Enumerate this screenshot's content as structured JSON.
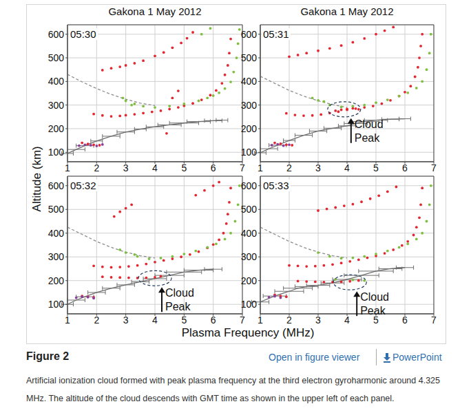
{
  "figure": {
    "x_label": "Plasma Frequency (MHz)",
    "y_label": "Altitude (km)"
  },
  "page": {
    "figure_label": "Figure 2",
    "links": [
      "Open in figure viewer",
      "PowerPoint"
    ],
    "caption": "Artificial ionization cloud formed with peak plasma frequency at the third electron gyroharmonic around 4.325 MHz. The altitude of the cloud descends with GMT time as shown in the upper left of each panel."
  },
  "chart_data": [
    {
      "type": "scatter",
      "title": "Gakona 1 May 2012",
      "subtitle": "05:30",
      "xlim": [
        1,
        7
      ],
      "ylim": [
        60,
        640
      ],
      "xticks": [
        1,
        2,
        3,
        4,
        5,
        6,
        7
      ],
      "yticks": [
        100,
        200,
        300,
        400,
        500,
        600
      ],
      "grid": true,
      "series": [
        {
          "type": "scatter",
          "color": "#e3262f",
          "marker": "circle",
          "x": [
            1.5,
            1.7,
            1.9,
            2.1,
            1.9,
            2.2,
            2.5,
            2.8,
            3.0,
            3.3,
            3.6,
            3.9,
            4.2,
            4.5,
            4.8,
            5.0,
            5.3,
            5.6,
            5.9,
            6.1,
            6.3,
            6.4,
            6.5,
            6.55,
            6.6,
            2.2,
            2.5,
            2.8,
            3.0,
            3.3,
            3.6,
            4.0,
            4.3,
            4.6,
            4.9,
            5.1,
            5.3,
            4.4,
            4.6,
            4.8
          ],
          "values": [
            140,
            135,
            132,
            130,
            262,
            256,
            252,
            254,
            257,
            261,
            266,
            271,
            276,
            283,
            290,
            297,
            307,
            322,
            342,
            362,
            392,
            428,
            468,
            520,
            580,
            448,
            456,
            462,
            468,
            477,
            488,
            508,
            523,
            543,
            563,
            583,
            608,
            180,
            330,
            360
          ]
        },
        {
          "type": "scatter",
          "color": "#7fbf3f",
          "marker": "circle",
          "x": [
            3.0,
            3.3,
            3.6,
            4.0,
            4.5,
            5.0,
            5.5,
            5.8,
            6.0,
            6.2,
            6.4,
            6.6,
            6.7,
            6.8,
            6.85,
            6.9,
            2.9,
            3.2,
            5.6,
            5.9
          ],
          "values": [
            318,
            305,
            295,
            290,
            296,
            305,
            318,
            330,
            340,
            352,
            370,
            398,
            440,
            500,
            560,
            620,
            330,
            300,
            600,
            625
          ]
        },
        {
          "type": "scatter",
          "color": "#8a3fa0",
          "marker": "circle",
          "x": [
            1.4,
            1.6,
            1.8,
            2.0,
            2.2
          ],
          "values": [
            128,
            132,
            130,
            127,
            133
          ]
        },
        {
          "type": "line",
          "color": "#8c8c8c",
          "line_style": "dashed",
          "x": [
            1.0,
            1.5,
            2.0,
            2.5,
            3.0,
            3.5,
            4.0
          ],
          "values": [
            430,
            398,
            370,
            345,
            325,
            308,
            298
          ]
        },
        {
          "type": "line",
          "color": "#6e6e6e",
          "line_style": "solid",
          "x": [
            1.0,
            1.3,
            1.6,
            2.0,
            2.5,
            3.0,
            3.5,
            4.0,
            4.5,
            5.0,
            5.5,
            6.0,
            6.3
          ],
          "values": [
            95,
            112,
            128,
            148,
            168,
            186,
            198,
            208,
            216,
            224,
            230,
            234,
            236
          ],
          "xerr": [
            0.2,
            0.3,
            0.3,
            0.2,
            0.3,
            0.3,
            0.2,
            0.3,
            0.4,
            0.5,
            0.4,
            0.3,
            0.2
          ]
        }
      ]
    },
    {
      "type": "scatter",
      "title": "Gakona 1 May 2012",
      "subtitle": "05:31",
      "xlim": [
        1,
        7
      ],
      "ylim": [
        60,
        640
      ],
      "xticks": [
        1,
        2,
        3,
        4,
        5,
        6,
        7
      ],
      "yticks": [
        100,
        200,
        300,
        400,
        500,
        600
      ],
      "grid": true,
      "annotation": {
        "text": [
          "Cloud",
          "Peak"
        ],
        "x": 3.9,
        "y": 282
      },
      "series": [
        {
          "type": "scatter",
          "color": "#e3262f",
          "marker": "circle",
          "x": [
            1.5,
            1.7,
            1.9,
            2.1,
            1.9,
            2.2,
            2.5,
            2.8,
            3.1,
            3.4,
            3.7,
            4.0,
            4.3,
            4.6,
            4.9,
            5.2,
            5.5,
            5.8,
            6.0,
            6.2,
            6.35,
            6.45,
            6.5,
            6.55,
            6.6,
            2.0,
            2.3,
            2.6,
            3.0,
            3.4,
            3.8,
            4.2,
            4.6,
            5.0,
            5.3,
            5.6,
            3.6,
            3.8,
            4.0,
            4.2,
            4.4
          ],
          "values": [
            140,
            136,
            132,
            130,
            265,
            258,
            255,
            256,
            260,
            266,
            272,
            280,
            285,
            290,
            296,
            306,
            320,
            338,
            355,
            380,
            420,
            460,
            500,
            550,
            600,
            505,
            512,
            520,
            530,
            540,
            552,
            566,
            582,
            600,
            615,
            630,
            276,
            280,
            283,
            286,
            282
          ]
        },
        {
          "type": "scatter",
          "color": "#7fbf3f",
          "marker": "circle",
          "x": [
            3.0,
            3.4,
            3.8,
            4.2,
            4.6,
            5.0,
            5.4,
            5.8,
            6.1,
            6.4,
            6.6,
            6.75,
            6.85,
            6.9,
            2.8,
            3.2
          ],
          "values": [
            320,
            300,
            292,
            295,
            300,
            310,
            322,
            338,
            352,
            372,
            400,
            450,
            520,
            600,
            330,
            315
          ]
        },
        {
          "type": "scatter",
          "color": "#8a3fa0",
          "marker": "circle",
          "x": [
            1.4,
            1.6,
            1.8,
            2.0
          ],
          "values": [
            130,
            134,
            128,
            132
          ]
        },
        {
          "type": "line",
          "color": "#8c8c8c",
          "line_style": "dashed",
          "x": [
            1.0,
            1.5,
            2.0,
            2.5,
            3.0,
            3.5,
            4.0
          ],
          "values": [
            422,
            392,
            362,
            338,
            318,
            302,
            290
          ]
        },
        {
          "type": "line",
          "color": "#6e6e6e",
          "line_style": "solid",
          "x": [
            1.0,
            1.3,
            1.6,
            2.0,
            2.5,
            3.0,
            3.5,
            4.0,
            4.3,
            4.6,
            5.0,
            5.5,
            6.0
          ],
          "values": [
            98,
            115,
            130,
            150,
            172,
            190,
            202,
            212,
            222,
            230,
            236,
            240,
            242
          ],
          "xerr": [
            0.2,
            0.3,
            0.3,
            0.2,
            0.3,
            0.3,
            0.3,
            0.3,
            0.4,
            0.5,
            0.4,
            0.3,
            0.2
          ]
        }
      ]
    },
    {
      "type": "scatter",
      "subtitle": "05:32",
      "xlim": [
        1,
        7
      ],
      "ylim": [
        60,
        640
      ],
      "xticks": [
        1,
        2,
        3,
        4,
        5,
        6,
        7
      ],
      "yticks": [
        100,
        200,
        300,
        400,
        500,
        600
      ],
      "grid": true,
      "annotation": {
        "text": [
          "Cloud",
          "Peak"
        ],
        "x": 4.0,
        "y": 210
      },
      "series": [
        {
          "type": "scatter",
          "color": "#e3262f",
          "marker": "circle",
          "x": [
            1.5,
            1.7,
            1.9,
            1.9,
            2.2,
            2.5,
            2.8,
            3.1,
            3.4,
            3.7,
            4.0,
            4.3,
            4.6,
            4.9,
            5.2,
            5.5,
            5.8,
            6.0,
            6.2,
            6.35,
            6.45,
            6.5,
            6.55,
            6.6,
            2.2,
            2.5,
            2.8,
            3.1,
            3.4,
            3.7,
            4.0,
            4.2,
            2.6,
            2.8,
            3.0,
            3.2,
            5.4,
            5.7,
            6.0,
            6.2
          ],
          "values": [
            135,
            132,
            130,
            262,
            258,
            256,
            257,
            260,
            264,
            270,
            278,
            285,
            292,
            300,
            310,
            322,
            338,
            352,
            372,
            400,
            440,
            480,
            530,
            590,
            216,
            214,
            213,
            212,
            211,
            212,
            214,
            218,
            470,
            490,
            505,
            520,
            560,
            580,
            600,
            615
          ]
        },
        {
          "type": "scatter",
          "color": "#7fbf3f",
          "marker": "circle",
          "x": [
            3.0,
            3.4,
            3.8,
            4.2,
            4.6,
            5.0,
            5.4,
            5.8,
            6.1,
            6.4,
            6.6,
            6.75,
            6.85,
            6.9,
            2.8,
            3.3
          ],
          "values": [
            318,
            302,
            292,
            295,
            302,
            312,
            325,
            340,
            355,
            375,
            400,
            450,
            520,
            600,
            330,
            310
          ]
        },
        {
          "type": "scatter",
          "color": "#8a3fa0",
          "marker": "circle",
          "x": [
            1.3,
            1.5,
            1.7,
            1.9
          ],
          "values": [
            128,
            132,
            130,
            126
          ]
        },
        {
          "type": "line",
          "color": "#8c8c8c",
          "line_style": "dashed",
          "x": [
            1.0,
            1.5,
            2.0,
            2.5,
            3.0,
            3.5,
            4.0
          ],
          "values": [
            425,
            395,
            365,
            340,
            320,
            305,
            295
          ]
        },
        {
          "type": "line",
          "color": "#6e6e6e",
          "line_style": "solid",
          "x": [
            1.0,
            1.3,
            1.6,
            2.0,
            2.5,
            3.0,
            3.5,
            4.0,
            4.5,
            5.0,
            5.5,
            6.0
          ],
          "values": [
            100,
            118,
            132,
            150,
            168,
            182,
            195,
            208,
            222,
            236,
            244,
            248
          ],
          "xerr": [
            0.2,
            0.3,
            0.3,
            0.3,
            0.3,
            0.3,
            0.3,
            0.4,
            0.5,
            0.6,
            0.5,
            0.3
          ]
        }
      ]
    },
    {
      "type": "scatter",
      "subtitle": "05:33",
      "xlim": [
        1,
        7
      ],
      "ylim": [
        60,
        640
      ],
      "xticks": [
        1,
        2,
        3,
        4,
        5,
        6,
        7
      ],
      "yticks": [
        100,
        200,
        300,
        400,
        500,
        600
      ],
      "grid": true,
      "annotation": {
        "text": [
          "Cloud",
          "Peak"
        ],
        "x": 4.1,
        "y": 193
      },
      "series": [
        {
          "type": "scatter",
          "color": "#e3262f",
          "marker": "circle",
          "x": [
            1.5,
            1.7,
            1.9,
            2.0,
            2.3,
            2.6,
            2.9,
            3.2,
            3.5,
            3.8,
            4.1,
            4.4,
            4.7,
            5.0,
            5.3,
            5.6,
            5.9,
            6.1,
            6.3,
            6.4,
            6.5,
            6.55,
            6.6,
            2.3,
            2.6,
            2.9,
            3.2,
            3.5,
            3.8,
            4.1,
            4.4,
            3.0,
            3.3,
            3.6,
            3.9,
            4.2,
            4.5,
            4.8,
            5.1,
            5.4,
            5.7
          ],
          "values": [
            140,
            135,
            132,
            264,
            262,
            260,
            261,
            264,
            268,
            274,
            281,
            288,
            296,
            304,
            315,
            330,
            348,
            365,
            392,
            425,
            465,
            520,
            590,
            198,
            196,
            195,
            194,
            194,
            195,
            197,
            200,
            495,
            502,
            508,
            515,
            522,
            532,
            545,
            558,
            575,
            595
          ]
        },
        {
          "type": "scatter",
          "color": "#7fbf3f",
          "marker": "circle",
          "x": [
            3.0,
            3.4,
            3.8,
            4.2,
            4.6,
            5.0,
            5.4,
            5.8,
            6.1,
            6.4,
            6.6,
            6.75,
            6.85,
            6.9,
            3.6,
            4.2,
            4.6
          ],
          "values": [
            318,
            302,
            294,
            296,
            302,
            312,
            325,
            340,
            355,
            375,
            400,
            450,
            520,
            600,
            205,
            203,
            200
          ]
        },
        {
          "type": "scatter",
          "color": "#8a3fa0",
          "marker": "circle",
          "x": [
            1.3,
            1.5,
            1.7
          ],
          "values": [
            130,
            134,
            128
          ]
        },
        {
          "type": "line",
          "color": "#8c8c8c",
          "line_style": "dashed",
          "x": [
            1.0,
            1.5,
            2.0,
            2.5,
            3.0,
            3.5,
            4.0
          ],
          "values": [
            425,
            395,
            365,
            340,
            320,
            305,
            295
          ]
        },
        {
          "type": "line",
          "color": "#6e6e6e",
          "line_style": "solid",
          "x": [
            1.0,
            1.5,
            2.0,
            2.3,
            2.6,
            3.0,
            3.5,
            4.0,
            4.5,
            5.0,
            5.5,
            6.0
          ],
          "values": [
            110,
            135,
            155,
            168,
            175,
            180,
            190,
            205,
            222,
            240,
            250,
            255
          ],
          "xerr": [
            0.3,
            0.4,
            0.5,
            0.5,
            0.4,
            0.4,
            0.4,
            0.5,
            0.6,
            0.6,
            0.4,
            0.3
          ]
        }
      ]
    }
  ]
}
